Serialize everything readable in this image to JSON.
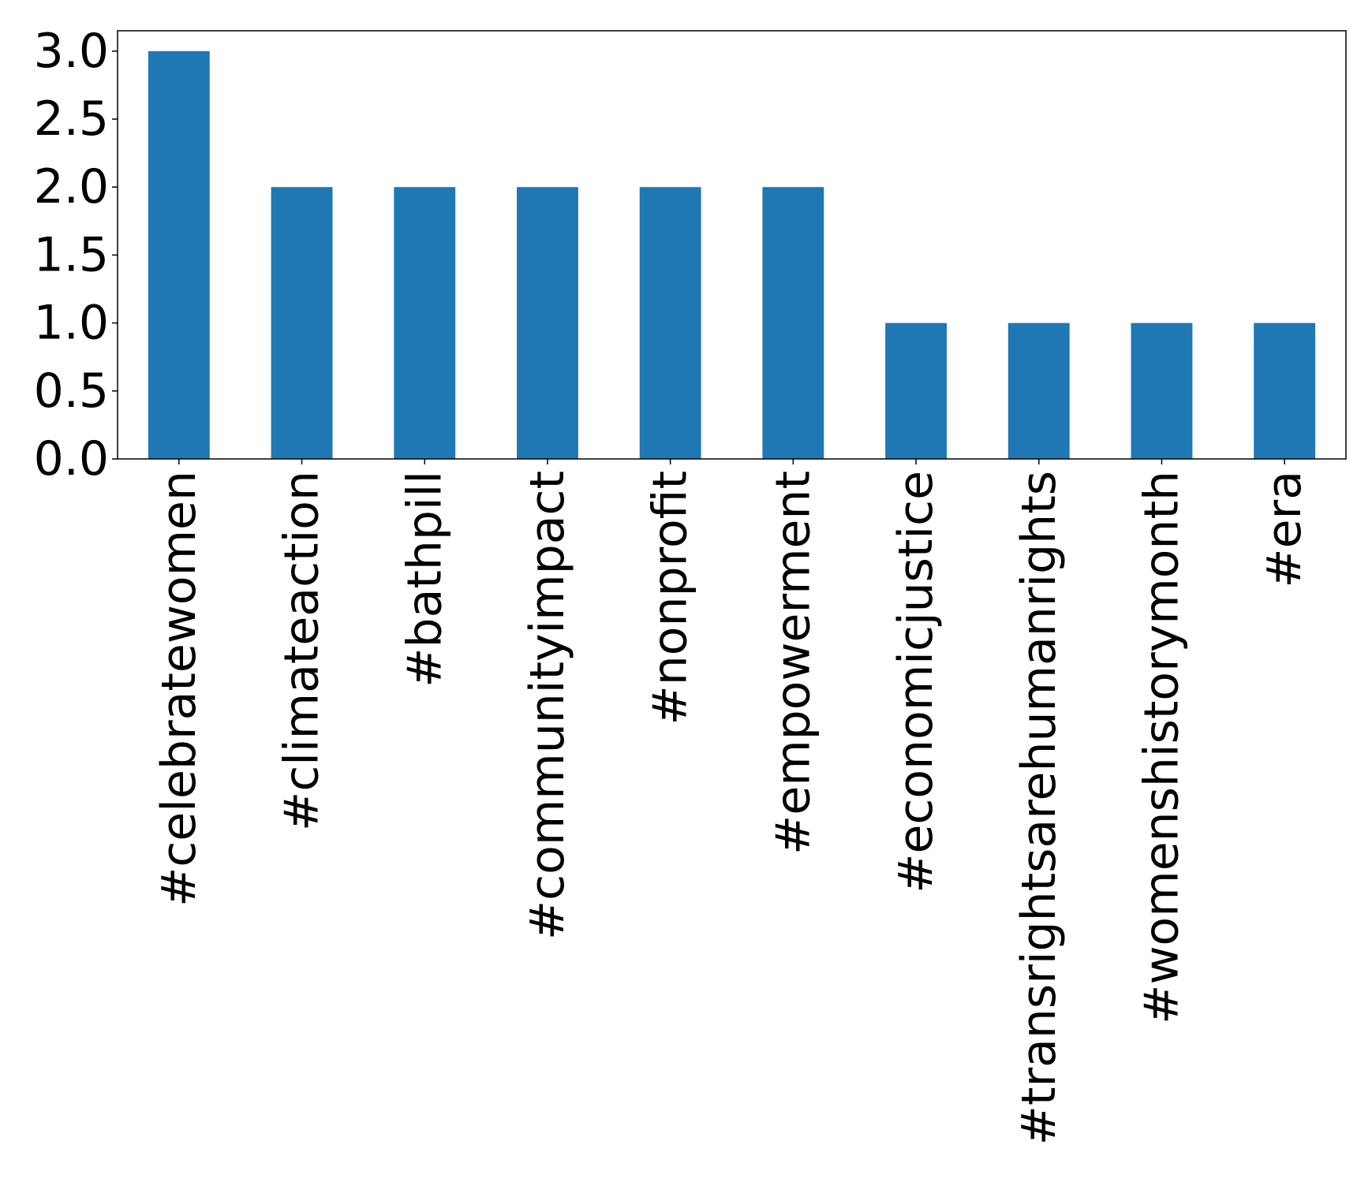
{
  "chart_data": {
    "type": "bar",
    "title": "",
    "xlabel": "",
    "ylabel": "",
    "categories": [
      "#celebratewomen",
      "#climateaction",
      "#bathpill",
      "#communityimpact",
      "#nonprofit",
      "#empowerment",
      "#economicjustice",
      "#transrightsarehumanrights",
      "#womenshistorymonth",
      "#era"
    ],
    "values": [
      3,
      2,
      2,
      2,
      2,
      2,
      1,
      1,
      1,
      1
    ],
    "ylim": [
      0,
      3.15
    ],
    "yticks": [
      0.0,
      0.5,
      1.0,
      1.5,
      2.0,
      2.5,
      3.0
    ],
    "ytick_labels": [
      "0.0",
      "0.5",
      "1.0",
      "1.5",
      "2.0",
      "2.5",
      "3.0"
    ],
    "bar_color": "#1f77b4",
    "grid": false,
    "legend": "none"
  }
}
